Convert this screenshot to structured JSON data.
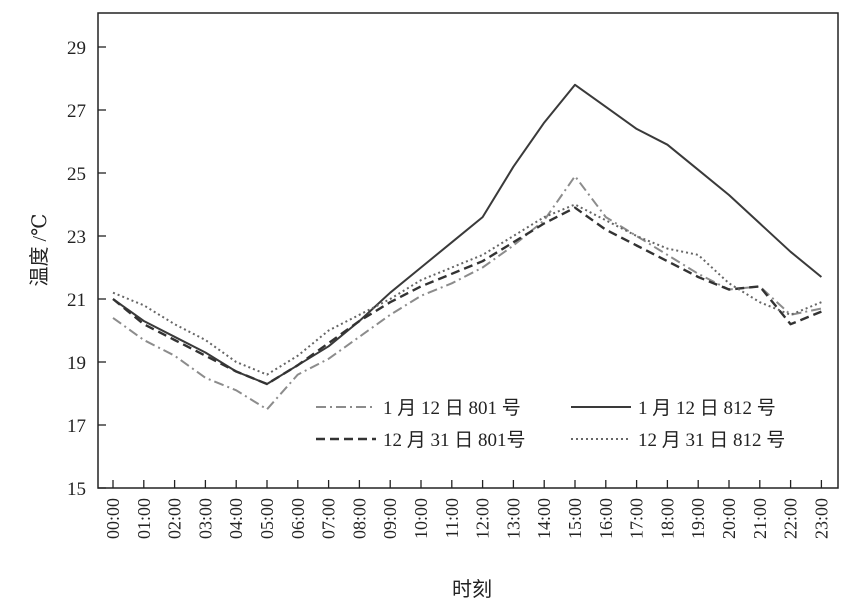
{
  "chart_data": {
    "type": "line",
    "xlabel": "时刻",
    "ylabel": "温度 /℃",
    "ylim": [
      15,
      30
    ],
    "yticks": [
      15,
      17,
      19,
      21,
      23,
      25,
      27,
      29
    ],
    "categories": [
      "00:00",
      "01:00",
      "02:00",
      "03:00",
      "04:00",
      "05:00",
      "06:00",
      "07:00",
      "08:00",
      "09:00",
      "10:00",
      "11:00",
      "12:00",
      "13:00",
      "14:00",
      "15:00",
      "16:00",
      "17:00",
      "18:00",
      "19:00",
      "20:00",
      "21:00",
      "22:00",
      "23:00"
    ],
    "grid": false,
    "legend_position": "bottom-right",
    "series": [
      {
        "name": "1 月 12 日 801 号",
        "style": "dashdot",
        "color": "#8c8c8c",
        "values": [
          20.4,
          19.7,
          19.2,
          18.5,
          18.1,
          17.5,
          18.6,
          19.1,
          19.8,
          20.5,
          21.1,
          21.5,
          22.0,
          22.7,
          23.5,
          24.9,
          23.6,
          23.0,
          22.4,
          21.8,
          21.3,
          21.4,
          20.5,
          20.7
        ]
      },
      {
        "name": "1 月 12 日 812 号",
        "style": "solid",
        "color": "#3a3a3a",
        "values": [
          21.0,
          20.3,
          19.8,
          19.3,
          18.7,
          18.3,
          18.9,
          19.5,
          20.3,
          21.2,
          22.0,
          22.8,
          23.6,
          25.2,
          26.6,
          27.8,
          27.1,
          26.4,
          25.9,
          25.1,
          24.3,
          23.4,
          22.5,
          21.7
        ]
      },
      {
        "name": "12 月 31 日 801号",
        "style": "dashed",
        "color": "#333333",
        "values": [
          21.0,
          20.2,
          19.7,
          19.2,
          18.7,
          18.3,
          18.9,
          19.6,
          20.3,
          20.9,
          21.4,
          21.8,
          22.2,
          22.8,
          23.4,
          23.9,
          23.2,
          22.7,
          22.2,
          21.7,
          21.3,
          21.4,
          20.2,
          20.6
        ]
      },
      {
        "name": "12 月 31 日 812 号",
        "style": "dotted",
        "color": "#666666",
        "values": [
          21.2,
          20.8,
          20.2,
          19.7,
          19.0,
          18.6,
          19.2,
          20.0,
          20.5,
          21.0,
          21.6,
          22.0,
          22.4,
          23.0,
          23.6,
          24.0,
          23.5,
          23.0,
          22.6,
          22.4,
          21.5,
          20.9,
          20.5,
          20.9
        ]
      }
    ]
  }
}
